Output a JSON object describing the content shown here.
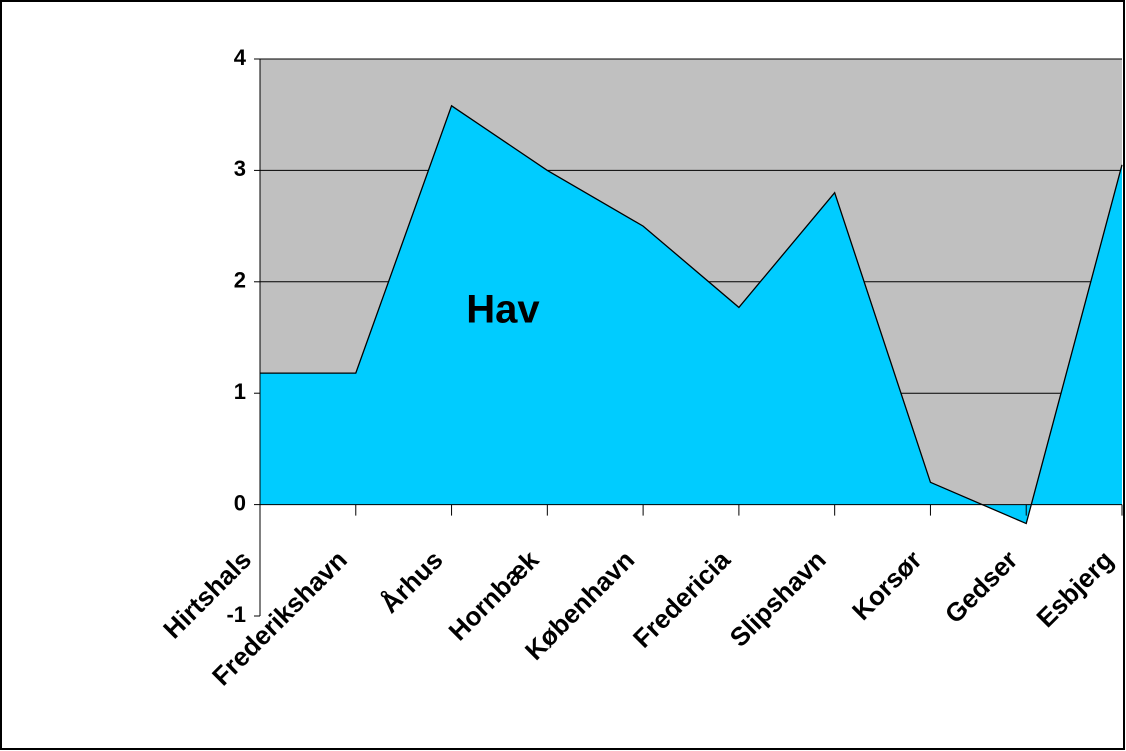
{
  "chart_data": {
    "type": "area",
    "annotation": "Hav",
    "categories": [
      "Hirtshals",
      "Frederikshavn",
      "Århus",
      "Hornbæk",
      "København",
      "Fredericia",
      "Slipshavn",
      "Korsør",
      "Gedser",
      "Esbjerg"
    ],
    "values": [
      1.18,
      1.18,
      3.58,
      3.0,
      2.5,
      1.77,
      2.8,
      0.2,
      -0.17,
      3.05
    ],
    "color": "#00ccff",
    "plot_background": "#c0c0c0",
    "ylim": [
      -1,
      4
    ],
    "yticks": [
      -1,
      0,
      1,
      2,
      3,
      4
    ],
    "grid": true
  }
}
